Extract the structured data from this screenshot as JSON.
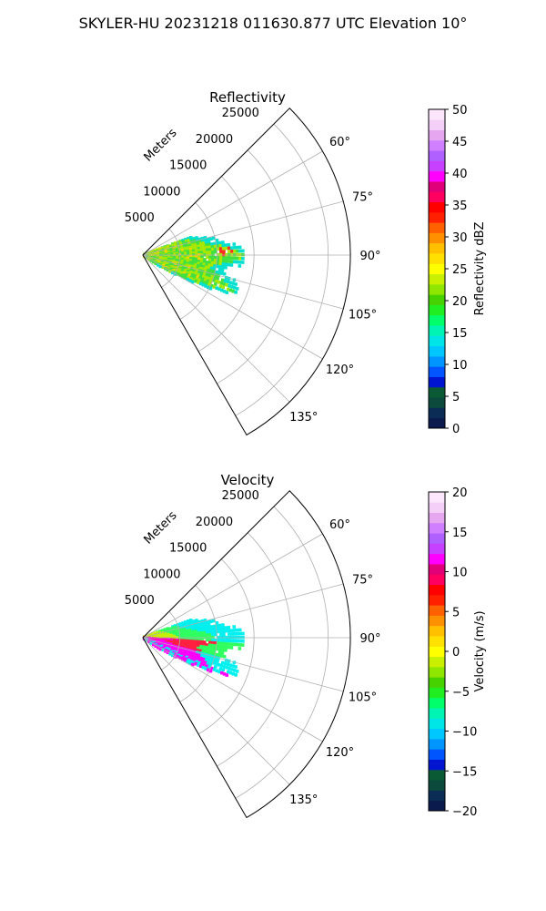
{
  "figure": {
    "title": "SKYLER-HU  20231218  011630.877 UTC Elevation 10°"
  },
  "chart_data": [
    {
      "type": "polar-sector",
      "title": "Reflectivity",
      "range_label": "Meters",
      "range_ticks": [
        5000,
        10000,
        15000,
        20000,
        25000
      ],
      "r_max": 28000,
      "theta_min": 45,
      "theta_max": 150,
      "theta_ticks": [
        "60°",
        "75°",
        "90°",
        "105°",
        "120°",
        "135°"
      ],
      "grid": true,
      "colorbar": {
        "label": "Reflectivity dBZ",
        "min": 0,
        "max": 50,
        "ticks": [
          0,
          5,
          10,
          15,
          20,
          25,
          30,
          35,
          40,
          45,
          50
        ],
        "colors": [
          "#0b1a4d",
          "#0b2d55",
          "#0b4a3d",
          "#0a5a35",
          "#0015d0",
          "#0055ff",
          "#0095ff",
          "#00c8ff",
          "#00e6e6",
          "#00f5b4",
          "#00ff6a",
          "#20ee20",
          "#46d200",
          "#8fe600",
          "#c8f000",
          "#ffff00",
          "#ffe000",
          "#ffc000",
          "#ff9000",
          "#ff6000",
          "#ff2000",
          "#ff0000",
          "#ff0060",
          "#e0007a",
          "#ff00ff",
          "#c840ff",
          "#b060ff",
          "#d080ff",
          "#e6a6f0",
          "#f4cff7",
          "#fbe6fb"
        ]
      },
      "echo_colors": {
        "outer": "#00e0d0",
        "mid": "#40e040",
        "core": "#a8e800",
        "high": "#ffd000",
        "peak": "#ff2a20"
      }
    },
    {
      "type": "polar-sector",
      "title": "Velocity",
      "range_label": "Meters",
      "range_ticks": [
        5000,
        10000,
        15000,
        20000,
        25000
      ],
      "r_max": 28000,
      "theta_min": 45,
      "theta_max": 150,
      "theta_ticks": [
        "60°",
        "75°",
        "90°",
        "105°",
        "120°",
        "135°"
      ],
      "grid": true,
      "colorbar": {
        "label": "Velocity (m/s)",
        "min": -20,
        "max": 20,
        "ticks": [
          -20,
          -15,
          -10,
          -5,
          0,
          5,
          10,
          15,
          20
        ],
        "colors": [
          "#0b1a4d",
          "#0b2d55",
          "#0b4a3d",
          "#0a5a35",
          "#0015d0",
          "#0055ff",
          "#0095ff",
          "#00c8ff",
          "#00e6e6",
          "#00f5b4",
          "#00ff6a",
          "#20ee20",
          "#46d200",
          "#8fe600",
          "#c8f000",
          "#ffff00",
          "#ffe000",
          "#ffc000",
          "#ff9000",
          "#ff6000",
          "#ff2000",
          "#ff0000",
          "#ff0060",
          "#e0007a",
          "#ff00ff",
          "#c840ff",
          "#b060ff",
          "#d080ff",
          "#e6a6f0",
          "#f4cff7",
          "#fbe6fb"
        ]
      },
      "echo_colors": {
        "outer": "#00f0f0",
        "mid": "#30ff60",
        "core": "#c8f000",
        "high": "#ff2040",
        "peak": "#ff00ff"
      }
    }
  ]
}
